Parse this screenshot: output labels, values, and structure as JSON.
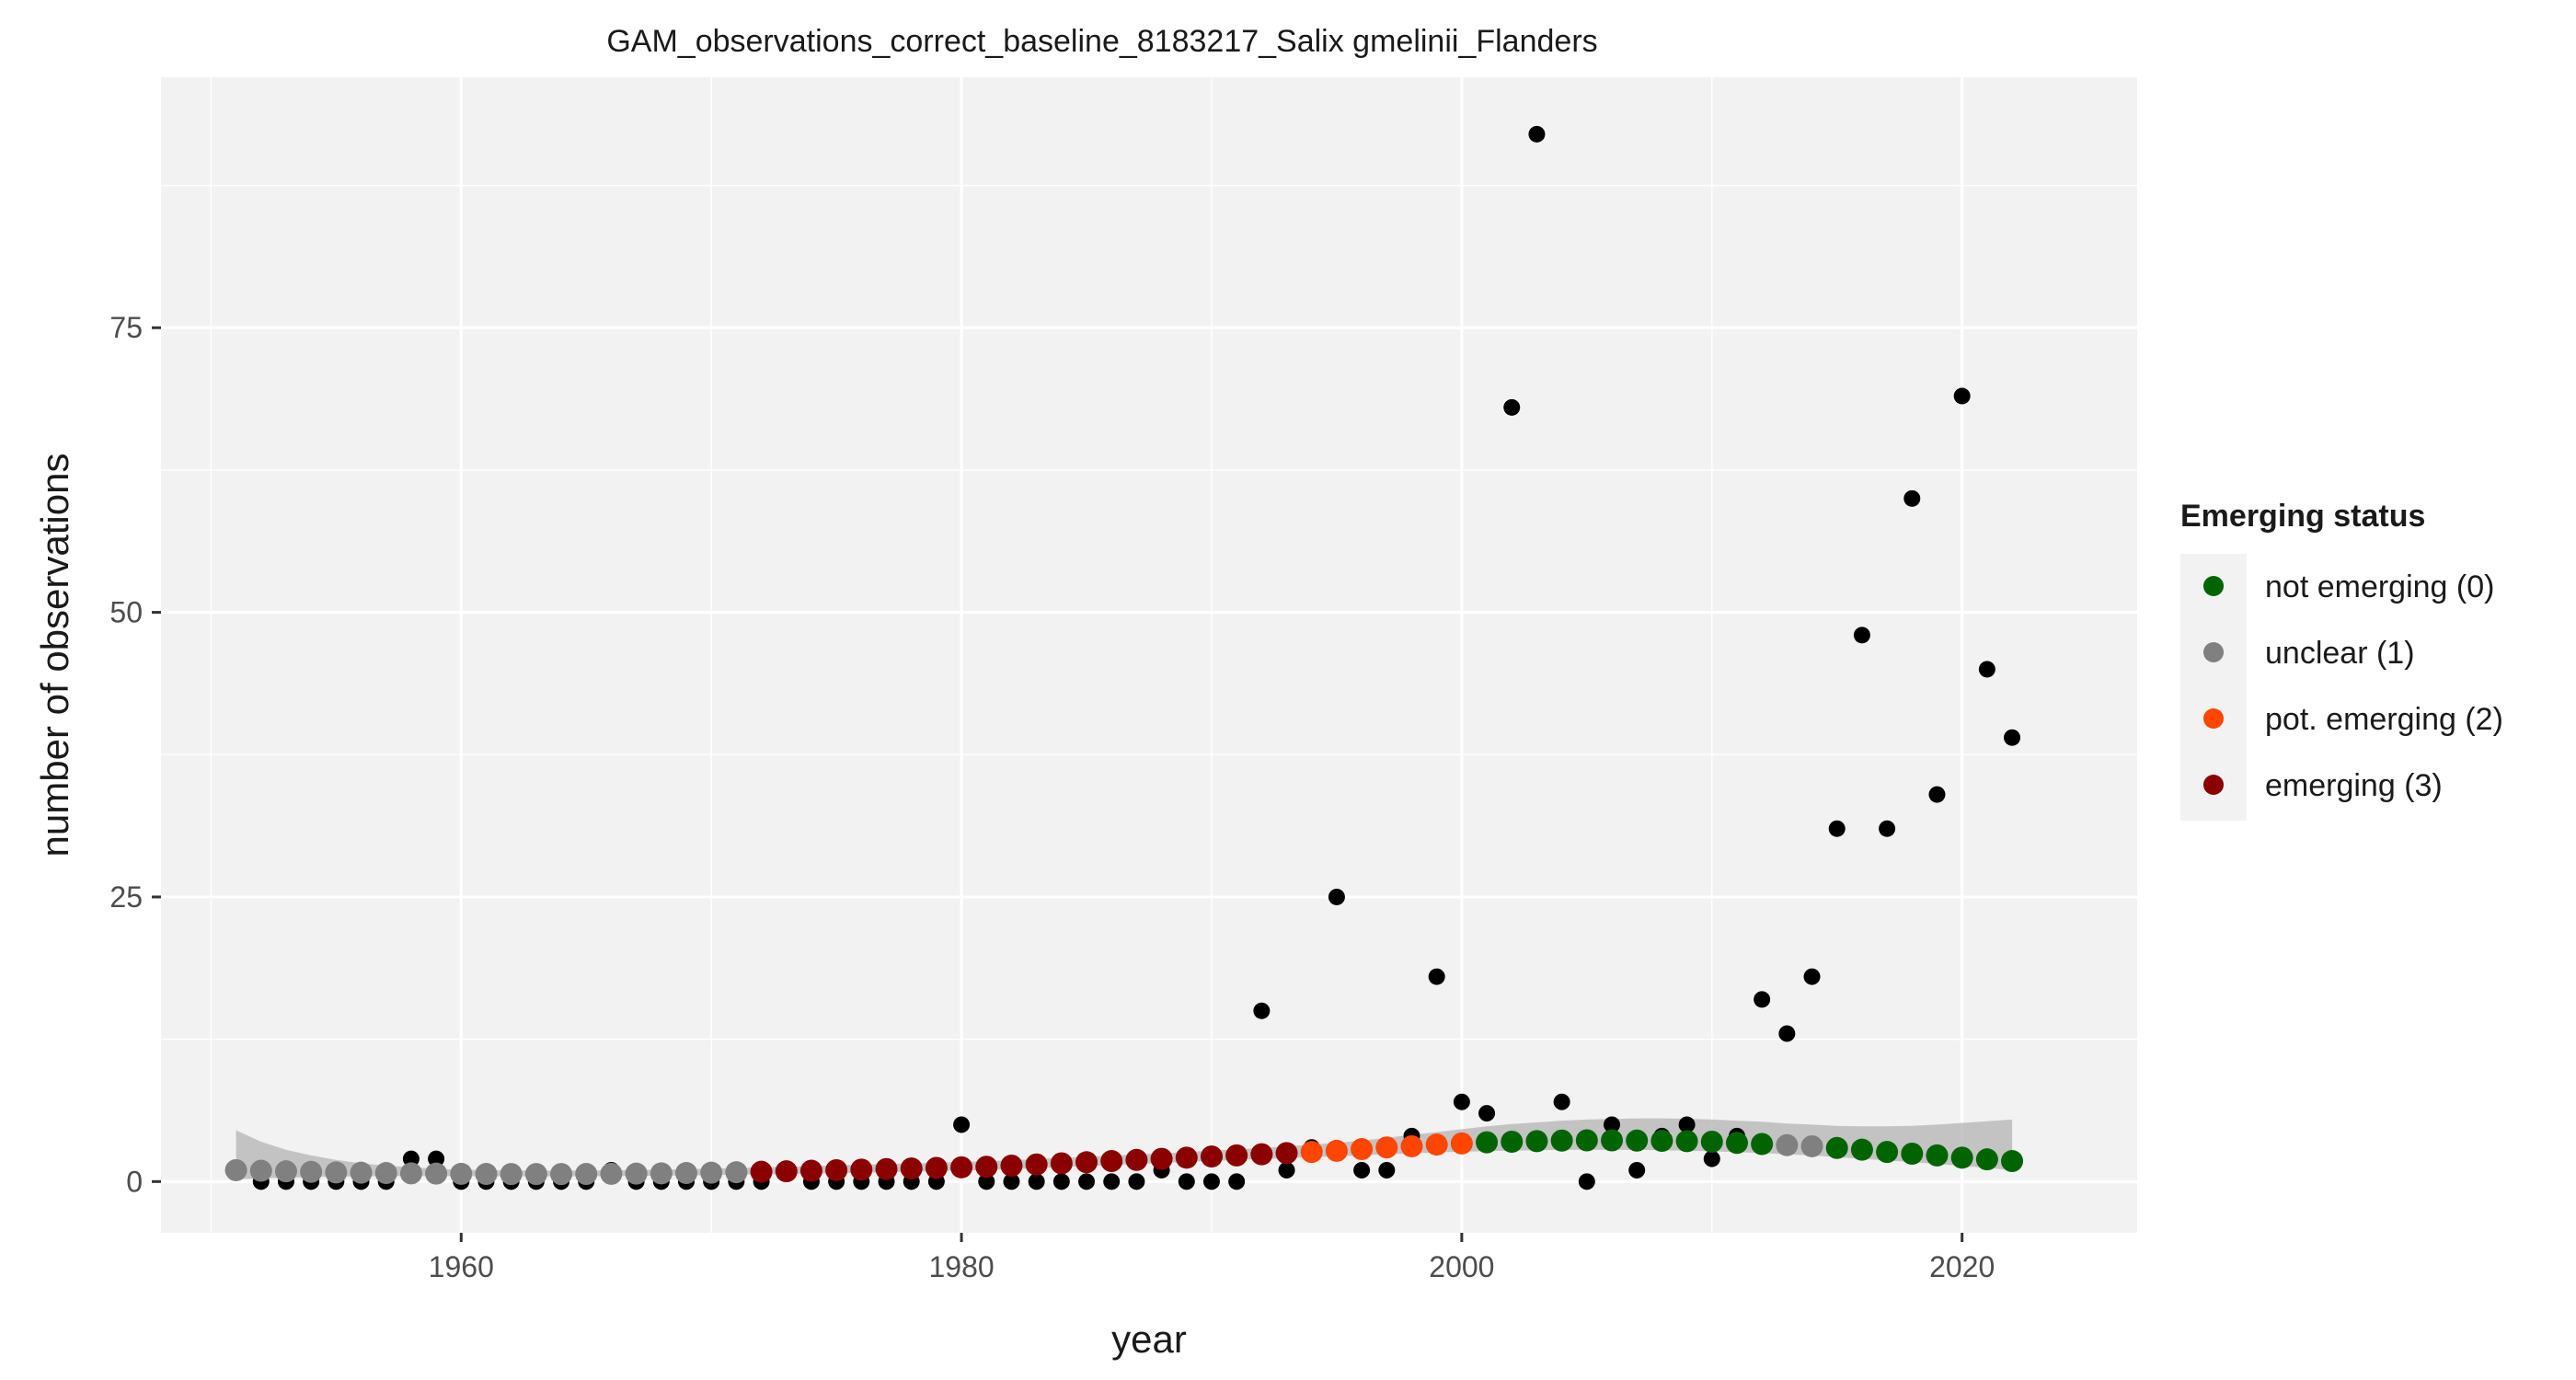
{
  "chart_data": {
    "type": "scatter",
    "title": "GAM_observations_correct_baseline_8183217_Salix gmelinii_Flanders",
    "xlabel": "year",
    "ylabel": "number of observations",
    "xlim": [
      1948,
      2027
    ],
    "ylim": [
      -4.5,
      97
    ],
    "x_ticks": [
      1960,
      1980,
      2000,
      2020
    ],
    "y_ticks": [
      0,
      25,
      50,
      75
    ],
    "grid": true,
    "legend_position": "right",
    "legend": {
      "title": "Emerging status",
      "entries": [
        {
          "label": "not emerging (0)",
          "color": "#006400"
        },
        {
          "label": "unclear (1)",
          "color": "#808080"
        },
        {
          "label": "pot. emerging (2)",
          "color": "#FF4500"
        },
        {
          "label": "emerging (3)",
          "color": "#8B0000"
        }
      ]
    },
    "observed": {
      "color": "#000000",
      "x": [
        1951,
        1952,
        1953,
        1954,
        1955,
        1956,
        1957,
        1958,
        1959,
        1960,
        1961,
        1962,
        1963,
        1964,
        1965,
        1966,
        1967,
        1968,
        1969,
        1970,
        1971,
        1972,
        1973,
        1974,
        1975,
        1976,
        1977,
        1978,
        1979,
        1980,
        1981,
        1982,
        1983,
        1984,
        1985,
        1986,
        1987,
        1988,
        1989,
        1990,
        1991,
        1992,
        1993,
        1994,
        1995,
        1996,
        1997,
        1998,
        1999,
        2000,
        2001,
        2002,
        2003,
        2004,
        2005,
        2006,
        2007,
        2008,
        2009,
        2010,
        2011,
        2012,
        2013,
        2014,
        2015,
        2016,
        2017,
        2018,
        2019,
        2020,
        2021,
        2022
      ],
      "y": [
        1,
        0,
        0,
        0,
        0,
        0,
        0,
        2,
        2,
        0,
        0,
        0,
        0,
        0,
        0,
        1,
        0,
        0,
        0,
        0,
        0,
        0,
        1,
        0,
        0,
        0,
        0,
        0,
        0,
        5,
        0,
        0,
        0,
        0,
        0,
        0,
        0,
        1,
        0,
        0,
        0,
        15,
        1,
        3,
        25,
        1,
        1,
        4,
        18,
        7,
        6,
        68,
        92,
        7,
        0,
        5,
        1,
        4,
        5,
        2,
        4,
        16,
        13,
        18,
        31,
        48,
        31,
        60,
        34,
        69,
        45,
        39
      ]
    },
    "fitted": {
      "x": [
        1951,
        1952,
        1953,
        1954,
        1955,
        1956,
        1957,
        1958,
        1959,
        1960,
        1961,
        1962,
        1963,
        1964,
        1965,
        1966,
        1967,
        1968,
        1969,
        1970,
        1971,
        1972,
        1973,
        1974,
        1975,
        1976,
        1977,
        1978,
        1979,
        1980,
        1981,
        1982,
        1983,
        1984,
        1985,
        1986,
        1987,
        1988,
        1989,
        1990,
        1991,
        1992,
        1993,
        1994,
        1995,
        1996,
        1997,
        1998,
        1999,
        2000,
        2001,
        2002,
        2003,
        2004,
        2005,
        2006,
        2007,
        2008,
        2009,
        2010,
        2011,
        2012,
        2013,
        2014,
        2015,
        2016,
        2017,
        2018,
        2019,
        2020,
        2021,
        2022
      ],
      "y": [
        1.0,
        0.95,
        0.9,
        0.85,
        0.8,
        0.78,
        0.75,
        0.72,
        0.7,
        0.68,
        0.67,
        0.66,
        0.66,
        0.66,
        0.67,
        0.68,
        0.7,
        0.72,
        0.75,
        0.78,
        0.82,
        0.86,
        0.9,
        0.95,
        1.0,
        1.05,
        1.1,
        1.15,
        1.2,
        1.25,
        1.3,
        1.4,
        1.5,
        1.6,
        1.7,
        1.8,
        1.9,
        2.0,
        2.1,
        2.2,
        2.3,
        2.4,
        2.5,
        2.6,
        2.7,
        2.85,
        3.0,
        3.1,
        3.25,
        3.35,
        3.45,
        3.5,
        3.55,
        3.6,
        3.62,
        3.62,
        3.6,
        3.58,
        3.55,
        3.5,
        3.4,
        3.3,
        3.2,
        3.1,
        2.95,
        2.8,
        2.6,
        2.45,
        2.3,
        2.1,
        1.95,
        1.8
      ],
      "status": [
        1,
        1,
        1,
        1,
        1,
        1,
        1,
        1,
        1,
        1,
        1,
        1,
        1,
        1,
        1,
        1,
        1,
        1,
        1,
        1,
        1,
        3,
        3,
        3,
        3,
        3,
        3,
        3,
        3,
        3,
        3,
        3,
        3,
        3,
        3,
        3,
        3,
        3,
        3,
        3,
        3,
        3,
        3,
        2,
        2,
        2,
        2,
        2,
        2,
        2,
        0,
        0,
        0,
        0,
        0,
        0,
        0,
        0,
        0,
        0,
        0,
        0,
        1,
        1,
        0,
        0,
        0,
        0,
        0,
        0,
        0,
        0
      ],
      "lower": [
        0.2,
        0.28,
        0.35,
        0.4,
        0.44,
        0.46,
        0.48,
        0.48,
        0.48,
        0.47,
        0.46,
        0.46,
        0.46,
        0.46,
        0.47,
        0.48,
        0.5,
        0.52,
        0.54,
        0.57,
        0.6,
        0.63,
        0.66,
        0.7,
        0.74,
        0.78,
        0.82,
        0.87,
        0.92,
        0.97,
        1.02,
        1.1,
        1.18,
        1.27,
        1.36,
        1.45,
        1.54,
        1.63,
        1.72,
        1.81,
        1.9,
        1.98,
        2.06,
        2.14,
        2.22,
        2.3,
        2.4,
        2.48,
        2.56,
        2.62,
        2.68,
        2.72,
        2.75,
        2.78,
        2.8,
        2.8,
        2.78,
        2.76,
        2.72,
        2.66,
        2.58,
        2.5,
        2.4,
        2.3,
        2.15,
        2.0,
        1.85,
        1.7,
        1.55,
        1.38,
        1.2,
        1.0
      ],
      "upper": [
        4.5,
        3.5,
        2.8,
        2.3,
        1.9,
        1.6,
        1.4,
        1.25,
        1.12,
        1.05,
        1.0,
        0.97,
        0.96,
        0.96,
        0.97,
        0.99,
        1.02,
        1.05,
        1.1,
        1.15,
        1.2,
        1.25,
        1.3,
        1.36,
        1.42,
        1.48,
        1.54,
        1.6,
        1.66,
        1.72,
        1.78,
        1.88,
        1.98,
        2.08,
        2.18,
        2.28,
        2.38,
        2.48,
        2.6,
        2.72,
        2.84,
        2.95,
        3.1,
        3.25,
        3.4,
        3.6,
        3.85,
        4.1,
        4.35,
        4.6,
        4.85,
        5.05,
        5.2,
        5.35,
        5.45,
        5.5,
        5.55,
        5.55,
        5.52,
        5.45,
        5.35,
        5.25,
        5.1,
        5.0,
        4.9,
        4.85,
        4.85,
        4.9,
        5.0,
        5.15,
        5.3,
        5.45
      ]
    }
  }
}
